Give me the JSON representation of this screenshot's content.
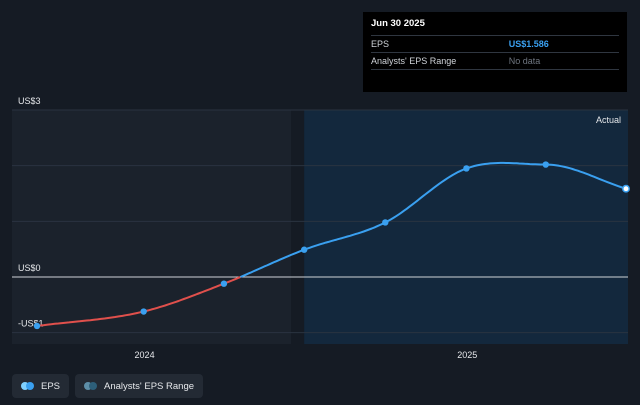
{
  "tooltip": {
    "date": "Jun 30 2025",
    "eps_label": "EPS",
    "eps_value": "US$1.586",
    "range_label": "Analysts' EPS Range",
    "range_value": "No data"
  },
  "legend": {
    "eps_label": "EPS",
    "range_label": "Analysts' EPS Range"
  },
  "colors": {
    "background": "#151b24",
    "past_region": "#1b222c",
    "future_region": "#13283d",
    "eps_positive": "#3aa0f0",
    "eps_negative": "#e0504c",
    "range": "#2d5f7a"
  },
  "chart_data": {
    "type": "line",
    "title": "",
    "ylabel": "",
    "region_label": "Actual",
    "y_tick_labels": [
      {
        "label": "US$3",
        "value": 3
      },
      {
        "label": "US$0",
        "value": 0
      },
      {
        "label": "-US$1",
        "value": -1
      }
    ],
    "x_tick_labels": [
      {
        "label": "2024",
        "value": "2024-01-01"
      },
      {
        "label": "2025",
        "value": "2025-01-01"
      }
    ],
    "ylim": [
      -1,
      3
    ],
    "xlim": [
      "2023-09-01",
      "2025-06-30"
    ],
    "actual_region_start": "2024-06-30",
    "series": [
      {
        "name": "EPS",
        "x": [
          "2023-09-01",
          "2023-12-31",
          "2024-03-31",
          "2024-06-30",
          "2024-09-30",
          "2024-12-31",
          "2025-03-31",
          "2025-06-30"
        ],
        "values": [
          -0.88,
          -0.62,
          -0.12,
          0.49,
          0.98,
          1.95,
          2.02,
          1.586
        ]
      }
    ],
    "grid": true,
    "legend_position": "bottom-left"
  }
}
